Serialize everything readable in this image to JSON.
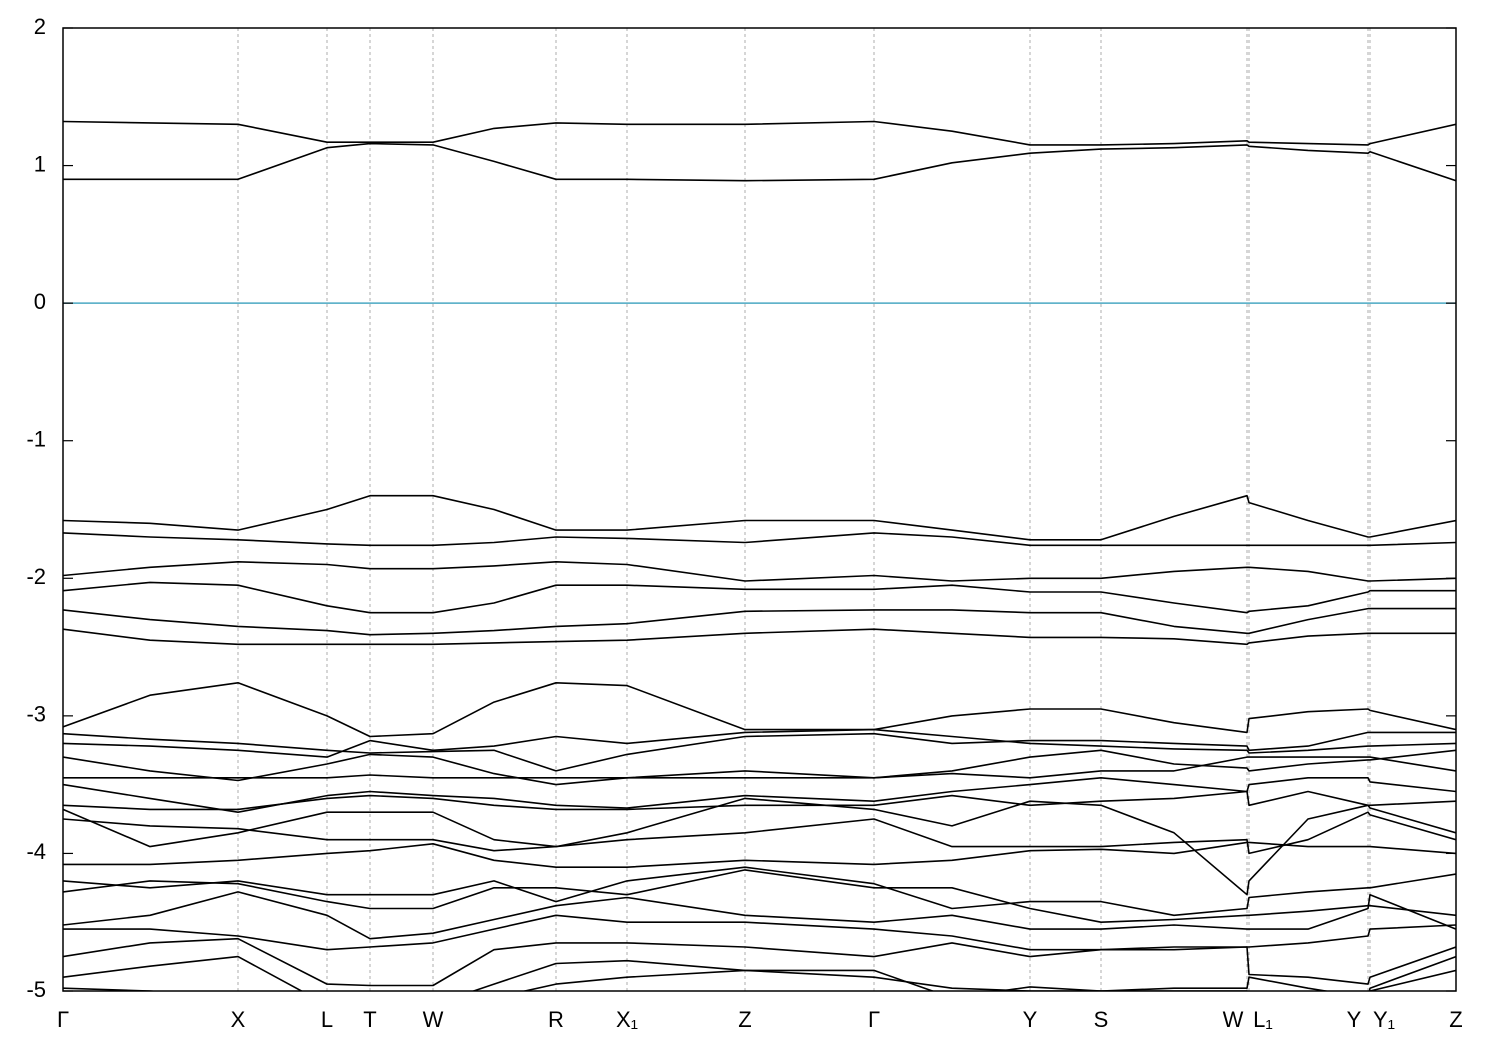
{
  "chart_data": {
    "type": "line",
    "x": [
      0,
      87,
      175,
      264,
      307,
      370,
      431,
      493,
      564,
      682,
      811,
      889,
      967,
      1038,
      1111,
      1184,
      1186,
      1245,
      1305,
      1307,
      1393
    ],
    "xlim": [
      0,
      1393
    ],
    "xticks": [
      {
        "value": 0,
        "label": "Γ"
      },
      {
        "value": 175,
        "label": "X"
      },
      {
        "value": 264,
        "label": "L"
      },
      {
        "value": 307,
        "label": "T"
      },
      {
        "value": 370,
        "label": "W"
      },
      {
        "value": 493,
        "label": "R"
      },
      {
        "value": 564,
        "label": "X₁"
      },
      {
        "value": 682,
        "label": "Z"
      },
      {
        "value": 811,
        "label": "Γ"
      },
      {
        "value": 967,
        "label": "Y"
      },
      {
        "value": 1038,
        "label": "S"
      },
      {
        "value": 1184,
        "label": "W"
      },
      {
        "value": 1186,
        "label": "L₁"
      },
      {
        "value": 1305,
        "label": "Y"
      },
      {
        "value": 1307,
        "label": "Y₁"
      },
      {
        "value": 1393,
        "label": "Z"
      }
    ],
    "ylim": [
      -5,
      2
    ],
    "yticks": [
      -5,
      -4,
      -3,
      -2,
      -1,
      0,
      1,
      2
    ],
    "grid": true,
    "color": "#000000",
    "reference_line": {
      "y": 0,
      "color": "#4aa8c2"
    },
    "series": [
      {
        "values": [
          1.32,
          1.31,
          1.3,
          1.17,
          1.17,
          1.17,
          1.27,
          1.31,
          1.3,
          1.3,
          1.32,
          1.25,
          1.15,
          1.15,
          1.16,
          1.18,
          1.17,
          1.16,
          1.15,
          1.16,
          1.3
        ]
      },
      {
        "values": [
          0.9,
          0.9,
          0.9,
          1.13,
          1.16,
          1.15,
          1.03,
          0.9,
          0.9,
          0.89,
          0.9,
          1.02,
          1.09,
          1.12,
          1.13,
          1.15,
          1.14,
          1.11,
          1.09,
          1.1,
          0.89
        ]
      },
      {
        "values": [
          -1.58,
          -1.6,
          -1.65,
          -1.5,
          -1.4,
          -1.4,
          -1.5,
          -1.65,
          -1.65,
          -1.58,
          -1.58,
          -1.65,
          -1.72,
          -1.72,
          -1.55,
          -1.4,
          -1.45,
          -1.58,
          -1.7,
          -1.7,
          -1.58
        ]
      },
      {
        "values": [
          -1.67,
          -1.7,
          -1.72,
          -1.75,
          -1.76,
          -1.76,
          -1.74,
          -1.7,
          -1.71,
          -1.74,
          -1.67,
          -1.7,
          -1.76,
          -1.76,
          -1.76,
          -1.76,
          -1.76,
          -1.76,
          -1.76,
          -1.76,
          -1.74
        ]
      },
      {
        "values": [
          -1.98,
          -1.92,
          -1.88,
          -1.9,
          -1.93,
          -1.93,
          -1.91,
          -1.88,
          -1.9,
          -2.02,
          -1.98,
          -2.02,
          -2.0,
          -2.0,
          -1.95,
          -1.92,
          -1.92,
          -1.95,
          -2.02,
          -2.02,
          -2.0
        ]
      },
      {
        "values": [
          -2.09,
          -2.03,
          -2.05,
          -2.2,
          -2.25,
          -2.25,
          -2.18,
          -2.05,
          -2.05,
          -2.08,
          -2.08,
          -2.05,
          -2.1,
          -2.1,
          -2.18,
          -2.25,
          -2.24,
          -2.2,
          -2.1,
          -2.09,
          -2.09
        ]
      },
      {
        "values": [
          -2.23,
          -2.3,
          -2.35,
          -2.38,
          -2.41,
          -2.4,
          -2.38,
          -2.35,
          -2.33,
          -2.24,
          -2.23,
          -2.23,
          -2.25,
          -2.25,
          -2.35,
          -2.4,
          -2.4,
          -2.3,
          -2.22,
          -2.22,
          -2.22
        ]
      },
      {
        "values": [
          -2.37,
          -2.45,
          -2.48,
          -2.48,
          -2.48,
          -2.48,
          -2.47,
          -2.46,
          -2.45,
          -2.4,
          -2.37,
          -2.4,
          -2.43,
          -2.43,
          -2.44,
          -2.48,
          -2.47,
          -2.42,
          -2.4,
          -2.4,
          -2.4
        ]
      },
      {
        "values": [
          -3.08,
          -2.85,
          -2.76,
          -3.0,
          -3.15,
          -3.13,
          -2.9,
          -2.76,
          -2.78,
          -3.1,
          -3.1,
          -3.0,
          -2.95,
          -2.95,
          -3.05,
          -3.12,
          -3.02,
          -2.97,
          -2.95,
          -2.96,
          -3.1
        ]
      },
      {
        "values": [
          -3.13,
          -3.17,
          -3.2,
          -3.25,
          -3.27,
          -3.26,
          -3.25,
          -3.4,
          -3.28,
          -3.15,
          -3.13,
          -3.2,
          -3.18,
          -3.18,
          -3.2,
          -3.22,
          -3.25,
          -3.22,
          -3.12,
          -3.12,
          -3.12
        ]
      },
      {
        "values": [
          -3.2,
          -3.22,
          -3.25,
          -3.3,
          -3.18,
          -3.25,
          -3.22,
          -3.15,
          -3.2,
          -3.12,
          -3.1,
          -3.15,
          -3.2,
          -3.22,
          -3.24,
          -3.25,
          -3.27,
          -3.25,
          -3.22,
          -3.22,
          -3.2
        ]
      },
      {
        "values": [
          -3.3,
          -3.4,
          -3.47,
          -3.35,
          -3.28,
          -3.3,
          -3.42,
          -3.5,
          -3.45,
          -3.4,
          -3.45,
          -3.4,
          -3.3,
          -3.25,
          -3.35,
          -3.38,
          -3.4,
          -3.35,
          -3.32,
          -3.32,
          -3.25
        ]
      },
      {
        "values": [
          -3.45,
          -3.45,
          -3.45,
          -3.45,
          -3.43,
          -3.45,
          -3.45,
          -3.45,
          -3.45,
          -3.45,
          -3.45,
          -3.42,
          -3.45,
          -3.4,
          -3.4,
          -3.3,
          -3.3,
          -3.3,
          -3.3,
          -3.3,
          -3.4
        ]
      },
      {
        "values": [
          -3.5,
          -3.6,
          -3.7,
          -3.58,
          -3.55,
          -3.58,
          -3.6,
          -3.65,
          -3.67,
          -3.58,
          -3.62,
          -3.55,
          -3.5,
          -3.45,
          -3.5,
          -3.55,
          -3.5,
          -3.45,
          -3.45,
          -3.48,
          -3.55
        ]
      },
      {
        "values": [
          -3.65,
          -3.68,
          -3.68,
          -3.6,
          -3.58,
          -3.6,
          -3.65,
          -3.68,
          -3.68,
          -3.65,
          -3.65,
          -3.58,
          -3.65,
          -3.62,
          -3.6,
          -3.55,
          -3.65,
          -3.55,
          -3.65,
          -3.65,
          -3.62
        ]
      },
      {
        "values": [
          -3.68,
          -3.95,
          -3.85,
          -3.7,
          -3.7,
          -3.7,
          -3.9,
          -3.95,
          -3.85,
          -3.6,
          -3.68,
          -3.8,
          -3.62,
          -3.65,
          -3.85,
          -4.3,
          -4.2,
          -3.75,
          -3.65,
          -3.67,
          -3.85
        ]
      },
      {
        "values": [
          -3.75,
          -3.8,
          -3.82,
          -3.9,
          -3.9,
          -3.9,
          -3.98,
          -3.95,
          -3.9,
          -3.85,
          -3.75,
          -3.95,
          -3.95,
          -3.95,
          -3.92,
          -3.9,
          -4.0,
          -3.9,
          -3.7,
          -3.72,
          -3.9
        ]
      },
      {
        "values": [
          -4.08,
          -4.08,
          -4.05,
          -4.0,
          -3.98,
          -3.93,
          -4.05,
          -4.1,
          -4.1,
          -4.05,
          -4.08,
          -4.05,
          -3.98,
          -3.97,
          -4.0,
          -3.92,
          -3.92,
          -3.95,
          -3.95,
          -3.95,
          -4.0
        ]
      },
      {
        "values": [
          -4.2,
          -4.25,
          -4.2,
          -4.3,
          -4.3,
          -4.3,
          -4.2,
          -4.35,
          -4.2,
          -4.1,
          -4.22,
          -4.4,
          -4.35,
          -4.35,
          -4.45,
          -4.4,
          -4.32,
          -4.28,
          -4.25,
          -4.25,
          -4.15
        ]
      },
      {
        "values": [
          -4.28,
          -4.2,
          -4.22,
          -4.35,
          -4.4,
          -4.4,
          -4.25,
          -4.25,
          -4.3,
          -4.12,
          -4.25,
          -4.25,
          -4.4,
          -4.5,
          -4.48,
          -4.45,
          -4.45,
          -4.42,
          -4.38,
          -4.38,
          -4.45
        ]
      },
      {
        "values": [
          -4.52,
          -4.45,
          -4.28,
          -4.45,
          -4.62,
          -4.58,
          -4.48,
          -4.38,
          -4.32,
          -4.45,
          -4.5,
          -4.45,
          -4.55,
          -4.55,
          -4.52,
          -4.55,
          -4.55,
          -4.55,
          -4.4,
          -4.3,
          -4.55
        ]
      },
      {
        "values": [
          -4.55,
          -4.55,
          -4.6,
          -4.7,
          -4.68,
          -4.65,
          -4.55,
          -4.45,
          -4.5,
          -4.5,
          -4.55,
          -4.6,
          -4.7,
          -4.7,
          -4.68,
          -4.68,
          -4.68,
          -4.65,
          -4.6,
          -4.55,
          -4.52
        ]
      },
      {
        "values": [
          -4.75,
          -4.65,
          -4.62,
          -4.95,
          -4.96,
          -4.96,
          -4.7,
          -4.65,
          -4.65,
          -4.68,
          -4.75,
          -4.65,
          -4.75,
          -4.7,
          -4.7,
          -4.68,
          -4.88,
          -4.9,
          -4.95,
          -4.9,
          -4.68
        ]
      },
      {
        "values": [
          -4.9,
          -4.82,
          -4.75,
          -5.1,
          -5.1,
          -5.1,
          -4.95,
          -4.8,
          -4.78,
          -4.85,
          -4.9,
          -4.98,
          -5.0,
          -5.0,
          -4.98,
          -4.98,
          -4.9,
          -4.98,
          -5.05,
          -4.98,
          -4.75
        ]
      },
      {
        "values": [
          -4.98,
          -5.0,
          -5.05,
          -5.1,
          -5.1,
          -5.1,
          -5.05,
          -4.95,
          -4.9,
          -4.85,
          -4.85,
          -5.05,
          -4.97,
          -5.0,
          -5.0,
          -5.0,
          -5.05,
          -5.05,
          -5.05,
          -5.0,
          -4.85
        ]
      }
    ]
  }
}
